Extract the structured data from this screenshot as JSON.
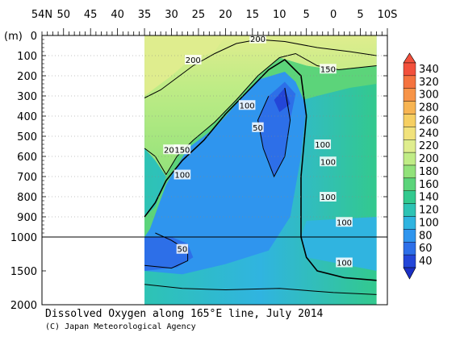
{
  "title": "Dissolved Oxygen along 165°E line, July 2014",
  "credit": "(C) Japan Meteorological Agency",
  "colors": {
    "background": "#ffffff",
    "frame": "#000000"
  },
  "chart_data": {
    "type": "heatmap",
    "title": "Dissolved Oxygen along 165°E line, July 2014",
    "ylabel": "(m)",
    "x_axis": {
      "label_positions_deg": [
        54,
        50,
        45,
        40,
        35,
        30,
        25,
        20,
        15,
        10,
        5,
        0,
        -5,
        -10
      ],
      "tick_labels": [
        "54N",
        "50",
        "45",
        "40",
        "35",
        "30",
        "25",
        "20",
        "15",
        "10",
        "5",
        "0",
        "5",
        "10S"
      ],
      "range": [
        54,
        -10
      ]
    },
    "y_axis": {
      "upper_tick_labels": [
        "0",
        "100",
        "200",
        "300",
        "400",
        "500",
        "600",
        "700",
        "800",
        "900",
        "1000"
      ],
      "lower_tick_labels": [
        "1500",
        "2000"
      ],
      "upper_range_m": [
        0,
        1000
      ],
      "lower_range_m": [
        1000,
        2000
      ],
      "scale_break_at_m": 1000
    },
    "data_coverage_lat": [
      35,
      -8
    ],
    "colorbar": {
      "labels": [
        "340",
        "320",
        "300",
        "280",
        "260",
        "240",
        "220",
        "200",
        "180",
        "160",
        "140",
        "120",
        "100",
        "80",
        "60",
        "40"
      ],
      "levels": [
        340,
        320,
        300,
        280,
        260,
        240,
        220,
        200,
        180,
        160,
        140,
        120,
        100,
        80,
        60,
        40
      ],
      "colors": [
        "#f2503c",
        "#f5733f",
        "#f79448",
        "#f7b452",
        "#f6cf62",
        "#f1e27c",
        "#dfed8e",
        "#c0ec86",
        "#92e27a",
        "#5cd47a",
        "#33c98e",
        "#2ec3b4",
        "#30b4e0",
        "#2f95ee",
        "#2d6fe8",
        "#2346d8"
      ]
    },
    "contour_labels": [
      {
        "text": "200",
        "lat": 14,
        "depth_m": 15
      },
      {
        "text": "200",
        "lat": 26,
        "depth_m": 120
      },
      {
        "text": "150",
        "lat": 1,
        "depth_m": 165
      },
      {
        "text": "100",
        "lat": 16,
        "depth_m": 345
      },
      {
        "text": "50",
        "lat": 14,
        "depth_m": 455
      },
      {
        "text": "100",
        "lat": 2,
        "depth_m": 540
      },
      {
        "text": "200",
        "lat": 30,
        "depth_m": 565
      },
      {
        "text": "150",
        "lat": 28,
        "depth_m": 565
      },
      {
        "text": "100",
        "lat": 1,
        "depth_m": 625
      },
      {
        "text": "100",
        "lat": 28,
        "depth_m": 690
      },
      {
        "text": "100",
        "lat": 1,
        "depth_m": 800
      },
      {
        "text": "100",
        "lat": -2,
        "depth_m": 925
      },
      {
        "text": "50",
        "lat": 28,
        "depth_m": 1175
      },
      {
        "text": "100",
        "lat": -2,
        "depth_m": 1375
      }
    ]
  }
}
